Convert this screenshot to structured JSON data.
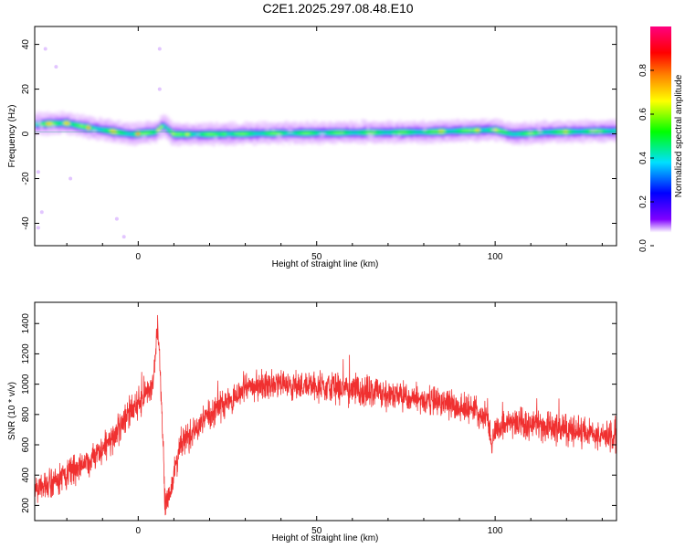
{
  "title": "C2E1.2025.297.08.48.E10",
  "chart_data": [
    {
      "type": "heatmap",
      "name": "spectrogram",
      "xlabel": "Height of straight line (km)",
      "ylabel": "Frequency (Hz)",
      "xlim": [
        -29,
        134
      ],
      "ylim": [
        -50,
        48
      ],
      "xticks": [
        0,
        50,
        100
      ],
      "yticks": [
        -40,
        -20,
        0,
        20,
        40
      ],
      "colorbar": {
        "label": "Normalized spectral amplitude",
        "range": [
          0,
          1
        ],
        "ticks": [
          0.0,
          0.2,
          0.4,
          0.6,
          0.8
        ],
        "tick_labels": [
          "0.0",
          "0.2",
          "0.4",
          "0.6",
          "0.8"
        ],
        "colormap": [
          "#ffffff",
          "#7f00ff",
          "#0000ff",
          "#00ffff",
          "#00ff00",
          "#ffff00",
          "#ff7f00",
          "#ff0000",
          "#ff0080"
        ]
      },
      "band_center_hz": [
        [
          -29,
          4.5
        ],
        [
          -20,
          5
        ],
        [
          -14,
          3
        ],
        [
          -8,
          1.5
        ],
        [
          -2,
          0
        ],
        [
          5,
          1
        ],
        [
          7,
          4
        ],
        [
          10,
          0
        ],
        [
          20,
          0
        ],
        [
          40,
          0.5
        ],
        [
          80,
          1
        ],
        [
          100,
          2
        ],
        [
          105,
          0
        ],
        [
          115,
          1
        ],
        [
          134,
          1.5
        ]
      ],
      "band_halfwidth_hz": 3.5,
      "peak_amplitude": 0.95,
      "hotspots": [
        [
          -25,
          5,
          0.9
        ],
        [
          -20,
          5,
          0.9
        ],
        [
          -14,
          3,
          0.85
        ],
        [
          -7,
          1.5,
          0.9
        ],
        [
          0,
          0,
          0.9
        ],
        [
          6,
          1,
          0.8
        ],
        [
          10,
          0,
          0.75
        ],
        [
          14,
          0,
          0.75
        ],
        [
          24,
          0,
          0.7
        ],
        [
          85,
          1,
          0.85
        ],
        [
          95,
          1.5,
          0.85
        ],
        [
          100,
          1,
          0.75
        ],
        [
          120,
          1,
          0.8
        ]
      ],
      "outliers": [
        [
          -26,
          38
        ],
        [
          -23,
          30
        ],
        [
          -28,
          -17
        ],
        [
          -19,
          -20
        ],
        [
          -27,
          -35
        ],
        [
          -28,
          -42
        ],
        [
          -6,
          -38
        ],
        [
          -4,
          -46
        ],
        [
          6,
          38
        ],
        [
          6,
          20
        ]
      ]
    },
    {
      "type": "line",
      "name": "snr",
      "color": "#f03030",
      "xlabel": "Height of straight line (km)",
      "ylabel": "SNR (10 * v/v)",
      "xlim": [
        -29,
        134
      ],
      "ylim": [
        100,
        1540
      ],
      "xticks": [
        0,
        50,
        100
      ],
      "yticks": [
        200,
        400,
        600,
        800,
        1000,
        1200,
        1400
      ],
      "trend": {
        "x": [
          -29,
          -20,
          -10,
          -2,
          4,
          5.5,
          6.5,
          7.5,
          9,
          12,
          20,
          30,
          40,
          55,
          70,
          85,
          95,
          98,
          99,
          100,
          105,
          115,
          125,
          134
        ],
        "y": [
          300,
          400,
          560,
          820,
          980,
          1400,
          900,
          200,
          300,
          600,
          800,
          980,
          1000,
          980,
          930,
          880,
          820,
          760,
          580,
          700,
          760,
          720,
          680,
          640
        ]
      },
      "noise_amplitude": 230
    }
  ]
}
